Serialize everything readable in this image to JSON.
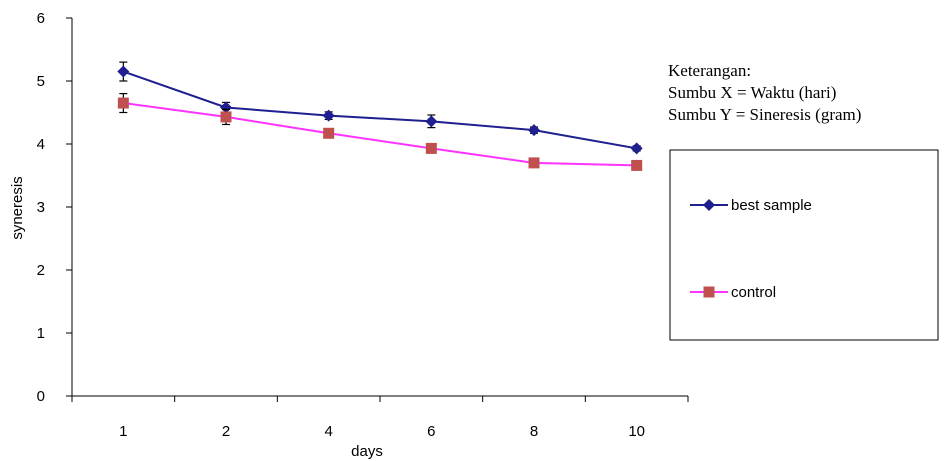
{
  "chart_data": {
    "type": "line",
    "categories": [
      "1",
      "2",
      "4",
      "6",
      "8",
      "10"
    ],
    "xlabel": "days",
    "ylabel": "syneresis",
    "ylim": [
      0,
      6
    ],
    "yticks": [
      "0",
      "1",
      "2",
      "3",
      "4",
      "5",
      "6"
    ],
    "grid": false,
    "legend_placement": "right",
    "series": [
      {
        "name": "best sample",
        "color": "#1f1f8f",
        "marker": "diamond",
        "values": [
          5.15,
          4.58,
          4.45,
          4.36,
          4.22,
          3.93
        ],
        "errors": [
          0.15,
          0.08,
          0.06,
          0.1,
          0.05,
          0.04
        ]
      },
      {
        "name": "control",
        "color": "#ff33ff",
        "marker_color": "#c0504d",
        "marker": "square",
        "values": [
          4.65,
          4.43,
          4.17,
          3.93,
          3.7,
          3.66
        ],
        "errors": [
          0.15,
          0.12,
          0.05,
          0.05,
          0.04,
          0.04
        ]
      }
    ]
  },
  "note": {
    "heading": "Keterangan:",
    "line_x": "Sumbu X = Waktu (hari)",
    "line_y": "Sumbu Y = Sineresis (gram)"
  }
}
